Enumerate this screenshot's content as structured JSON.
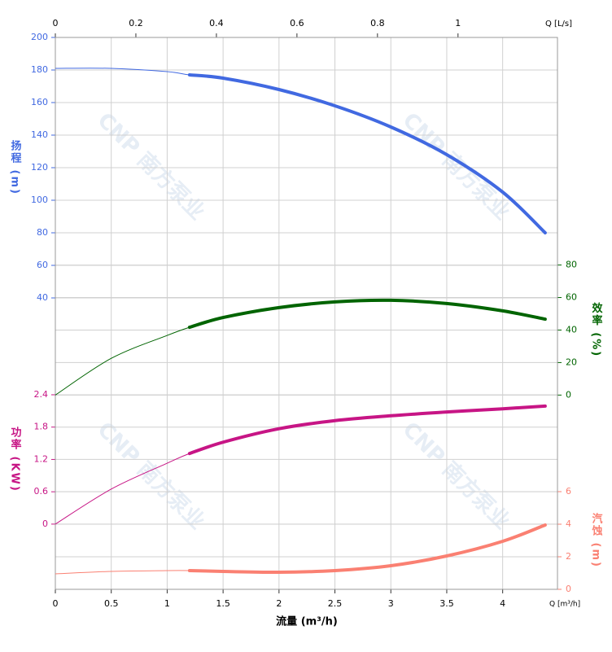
{
  "chart_data": {
    "type": "line",
    "x_title": "流量 (m³/h)",
    "x_unit": "Q [m³/h]",
    "x2_unit": "Q [L/s]",
    "watermark": "CNP 南方泵业",
    "xlim": [
      0,
      4.49
    ],
    "xticks": [
      0,
      0.5,
      1,
      1.5,
      2,
      2.5,
      3,
      3.5,
      4
    ],
    "x2lim": [
      0,
      1.247
    ],
    "x2ticks": [
      0,
      0.2,
      0.4,
      0.6,
      0.8,
      1
    ],
    "highlight_from": 1.2,
    "grid": true,
    "x": [
      0,
      0.5,
      1,
      1.2,
      1.5,
      2,
      2.5,
      3,
      3.5,
      4,
      4.38
    ],
    "series": [
      {
        "name": "扬程 (m)",
        "color": "#4169e1",
        "side": "left",
        "ylim": [
          -139,
          200
        ],
        "yticks": [
          40,
          60,
          80,
          100,
          120,
          140,
          160,
          180,
          200
        ],
        "values": [
          181,
          181,
          179,
          177,
          175,
          168,
          158,
          145,
          128,
          105,
          80
        ]
      },
      {
        "name": "效率 (%)",
        "color": "#006400",
        "side": "right",
        "ylim": [
          -119.5,
          220
        ],
        "yticks": [
          0,
          20,
          40,
          60,
          80
        ],
        "values": [
          0,
          22.6,
          36.7,
          41.7,
          47.7,
          53.8,
          57.3,
          58.3,
          56.3,
          51.8,
          46.7
        ]
      },
      {
        "name": "功率 (KW)",
        "color": "#c71585",
        "side": "left",
        "ylim": [
          -1.21,
          9.03
        ],
        "yticks": [
          0,
          0.6,
          1.2,
          1.8,
          2.4
        ],
        "values": [
          0,
          0.65,
          1.13,
          1.31,
          1.52,
          1.77,
          1.92,
          2.01,
          2.08,
          2.14,
          2.19
        ]
      },
      {
        "name": "汽蚀 (m)",
        "color": "#fa8072",
        "side": "right",
        "ylim": [
          0,
          33.9
        ],
        "yticks": [
          0,
          2,
          4,
          6
        ],
        "values": [
          0.95,
          1.1,
          1.15,
          1.15,
          1.1,
          1.05,
          1.15,
          1.45,
          2.05,
          2.95,
          3.95
        ]
      }
    ]
  }
}
